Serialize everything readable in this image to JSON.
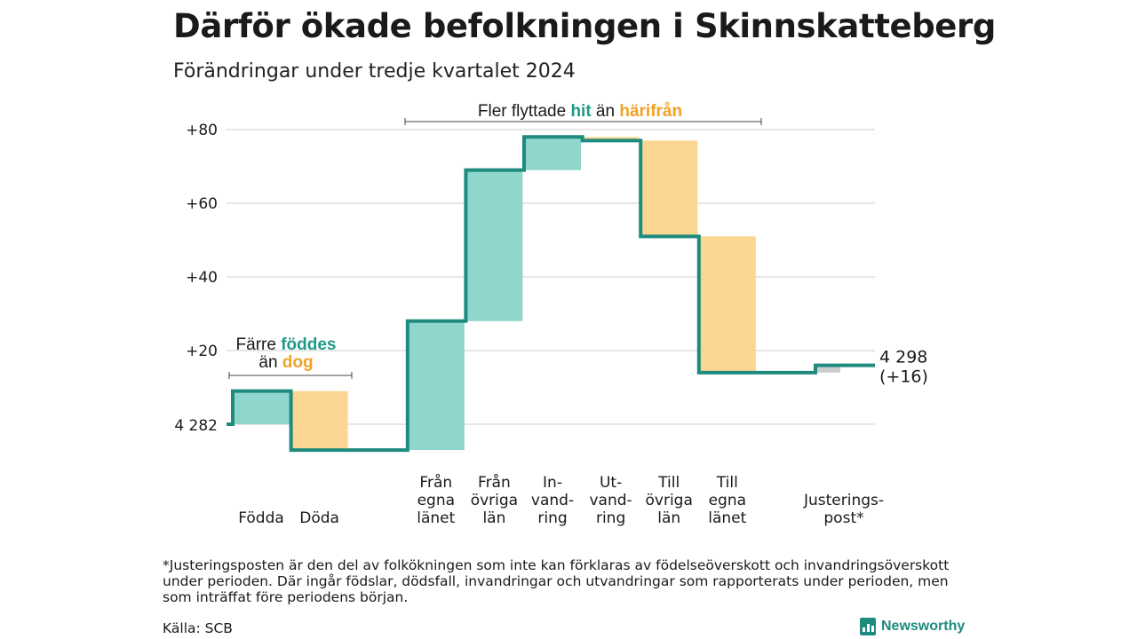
{
  "title": "Därför ökade befolkningen i Skinnskatteberg",
  "subtitle": "Förändringar under tredje kvartalet 2024",
  "chart_data": {
    "type": "waterfall",
    "base_label": "4 282",
    "end_label_1": "4 298",
    "end_label_2": "(+16)",
    "yticks": [
      {
        "value": 20,
        "label": "+20"
      },
      {
        "value": 40,
        "label": "+40"
      },
      {
        "value": 60,
        "label": "+60"
      },
      {
        "value": 80,
        "label": "+80"
      }
    ],
    "ylim": [
      -8,
      84
    ],
    "steps": [
      {
        "category": [
          "Födda"
        ],
        "change": 9,
        "kind": "in"
      },
      {
        "category": [
          "Döda"
        ],
        "change": -16,
        "kind": "out"
      },
      {
        "category": [],
        "change": 0,
        "kind": "gap"
      },
      {
        "category": [
          "Från",
          "egna",
          "länet"
        ],
        "change": 35,
        "kind": "in"
      },
      {
        "category": [
          "Från",
          "övriga",
          "län"
        ],
        "change": 41,
        "kind": "in"
      },
      {
        "category": [
          "In-",
          "vand-",
          "ring"
        ],
        "change": 9,
        "kind": "in"
      },
      {
        "category": [
          "Ut-",
          "vand-",
          "ring"
        ],
        "change": -1,
        "kind": "out"
      },
      {
        "category": [
          "Till",
          "övriga",
          "län"
        ],
        "change": -26,
        "kind": "out"
      },
      {
        "category": [
          "Till",
          "egna",
          "länet"
        ],
        "change": -37,
        "kind": "out"
      },
      {
        "category": [],
        "change": 0,
        "kind": "gap"
      },
      {
        "category": [
          "Justerings-",
          "post*"
        ],
        "change": 2,
        "kind": "adj"
      }
    ],
    "annotation_left": {
      "line1": "Färre ",
      "line1_hl": "föddes",
      "line2": "än ",
      "line2_hl": "dog"
    },
    "annotation_top": {
      "text1": "Fler flyttade ",
      "hl1": "hit",
      "text2": " än ",
      "hl2": "härifrån"
    },
    "colors": {
      "in": "#8fd6cd",
      "out": "#fbd693",
      "adj": "#cccccc",
      "line": "#1f8a7e",
      "teal_text": "#1f9a8a",
      "orange_text": "#f0a226"
    }
  },
  "footnote": "*Justeringsposten är den del av folkökningen som inte kan förklaras av födelseöverskott och invandringsöverskott under perioden. Där ingår födslar, dödsfall, invandringar och utvandringar som rapporterats under perioden, men som inträffat före periodens början.",
  "source": "Källa: SCB",
  "logo_text": "Newsworthy"
}
